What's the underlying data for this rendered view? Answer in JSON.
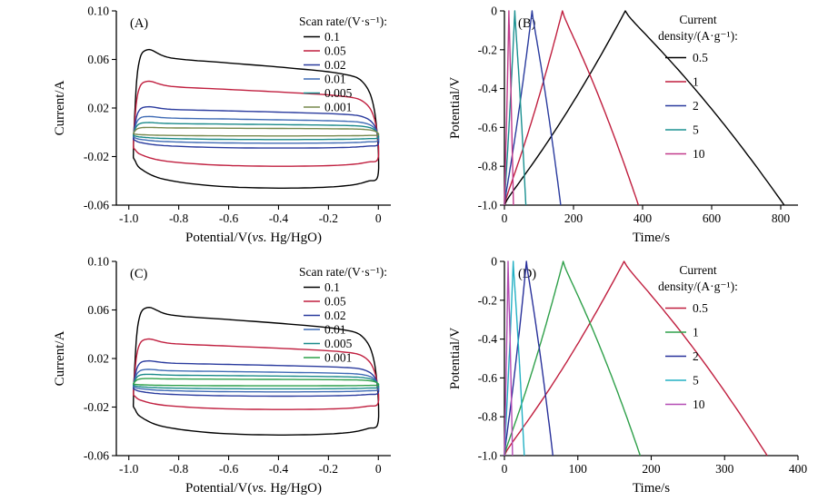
{
  "figure": {
    "background": "#ffffff",
    "description": "Four-panel electrochemistry figure: CV curves (A, C) and galvanostatic charge-discharge curves (B, D)"
  },
  "chart_data": [
    {
      "id": "A",
      "type": "line",
      "subtype": "cv",
      "panel_label": "(A)",
      "xlabel_parts": [
        "Potential/V(",
        "vs.",
        " Hg/HgO)"
      ],
      "ylabel": "Current/A",
      "xlim": [
        -1.05,
        0.05
      ],
      "ylim": [
        -0.06,
        0.1
      ],
      "xticks": [
        -1.0,
        -0.8,
        -0.6,
        -0.4,
        -0.2,
        0
      ],
      "xtick_labels": [
        "-1.0",
        "-0.8",
        "-0.6",
        "-0.4",
        "-0.2",
        "0"
      ],
      "yticks": [
        0.1,
        0.06,
        0.02,
        -0.02,
        -0.06
      ],
      "ytick_labels": [
        "0.10",
        "0.06",
        "0.02",
        "-0.02",
        "-0.06"
      ],
      "margins": {
        "l": 128,
        "r": 20,
        "t": 12,
        "b": 50
      },
      "ylabel_offset": 58,
      "legend": {
        "title_lines": [
          "Scan rate/(V·s⁻¹):"
        ],
        "style": "cv"
      },
      "series": [
        {
          "label": "0.1",
          "color": "#000000",
          "i_top": 0.068,
          "i_bottom": -0.046
        },
        {
          "label": "0.05",
          "color": "#c01f3f",
          "i_top": 0.042,
          "i_bottom": -0.028
        },
        {
          "label": "0.02",
          "color": "#2a3b9e",
          "i_top": 0.021,
          "i_bottom": -0.013
        },
        {
          "label": "0.01",
          "color": "#3f6bb5",
          "i_top": 0.013,
          "i_bottom": -0.009
        },
        {
          "label": "0.005",
          "color": "#1a8a8a",
          "i_top": 0.008,
          "i_bottom": -0.006
        },
        {
          "label": "0.001",
          "color": "#77884c",
          "i_top": 0.004,
          "i_bottom": -0.003
        }
      ]
    },
    {
      "id": "B",
      "type": "line",
      "subtype": "gcd",
      "panel_label": "(B)",
      "xlabel": "Time/s",
      "ylabel": "Potential/V",
      "xlim": [
        0,
        850
      ],
      "ylim": [
        -1.0,
        0
      ],
      "xticks": [
        0,
        200,
        400,
        600,
        800
      ],
      "xtick_labels": [
        "0",
        "200",
        "400",
        "600",
        "800"
      ],
      "yticks": [
        0,
        -0.2,
        -0.4,
        -0.6,
        -0.8,
        -1.0
      ],
      "ytick_labels": [
        "0",
        "-0.2",
        "-0.4",
        "-0.6",
        "-0.8",
        "-1.0"
      ],
      "margins": {
        "l": 105,
        "r": 22,
        "t": 12,
        "b": 50
      },
      "ylabel_offset": 50,
      "legend": {
        "title_lines": [
          "Current",
          "density/(A·g⁻¹):"
        ],
        "style": "gcd"
      },
      "series": [
        {
          "label": "0.5",
          "color": "#000000",
          "t_start": 0,
          "t_peak": 350,
          "t_end": 810
        },
        {
          "label": "1",
          "color": "#c01f3f",
          "t_start": 0,
          "t_peak": 168,
          "t_end": 388
        },
        {
          "label": "2",
          "color": "#2a3b9e",
          "t_start": 0,
          "t_peak": 80,
          "t_end": 163
        },
        {
          "label": "5",
          "color": "#1a9090",
          "t_start": 0,
          "t_peak": 30,
          "t_end": 62
        },
        {
          "label": "10",
          "color": "#c23a8c",
          "t_start": 0,
          "t_peak": 13,
          "t_end": 26
        }
      ]
    },
    {
      "id": "C",
      "type": "line",
      "subtype": "cv",
      "panel_label": "(C)",
      "xlabel_parts": [
        "Potential/V(",
        "vs.",
        " Hg/HgO)"
      ],
      "ylabel": "Current/A",
      "xlim": [
        -1.05,
        0.05
      ],
      "ylim": [
        -0.06,
        0.1
      ],
      "xticks": [
        -1.0,
        -0.8,
        -0.6,
        -0.4,
        -0.2,
        0
      ],
      "xtick_labels": [
        "-1.0",
        "-0.8",
        "-0.6",
        "-0.4",
        "-0.2",
        "0"
      ],
      "yticks": [
        0.1,
        0.06,
        0.02,
        -0.02,
        -0.06
      ],
      "ytick_labels": [
        "0.10",
        "0.06",
        "0.02",
        "-0.02",
        "-0.06"
      ],
      "margins": {
        "l": 128,
        "r": 20,
        "t": 12,
        "b": 50
      },
      "ylabel_offset": 58,
      "legend": {
        "title_lines": [
          "Scan rate/(V·s⁻¹):"
        ],
        "style": "cv"
      },
      "series": [
        {
          "label": "0.1",
          "color": "#000000",
          "i_top": 0.062,
          "i_bottom": -0.043
        },
        {
          "label": "0.05",
          "color": "#c01f3f",
          "i_top": 0.036,
          "i_bottom": -0.022
        },
        {
          "label": "0.02",
          "color": "#2a3b9e",
          "i_top": 0.018,
          "i_bottom": -0.011
        },
        {
          "label": "0.01",
          "color": "#3f6bb5",
          "i_top": 0.011,
          "i_bottom": -0.0075
        },
        {
          "label": "0.005",
          "color": "#1a8a8a",
          "i_top": 0.007,
          "i_bottom": -0.005
        },
        {
          "label": "0.001",
          "color": "#2fa04a",
          "i_top": 0.0035,
          "i_bottom": -0.0025
        }
      ]
    },
    {
      "id": "D",
      "type": "line",
      "subtype": "gcd",
      "panel_label": "(D)",
      "xlabel": "Time/s",
      "ylabel": "Potential/V",
      "xlim": [
        0,
        400
      ],
      "ylim": [
        -1.0,
        0
      ],
      "xticks": [
        0,
        100,
        200,
        300,
        400
      ],
      "xtick_labels": [
        "0",
        "100",
        "200",
        "300",
        "400"
      ],
      "yticks": [
        0,
        -0.2,
        -0.4,
        -0.6,
        -0.8,
        -1.0
      ],
      "ytick_labels": [
        "0",
        "-0.2",
        "-0.4",
        "-0.6",
        "-0.8",
        "-1.0"
      ],
      "margins": {
        "l": 105,
        "r": 22,
        "t": 12,
        "b": 50
      },
      "ylabel_offset": 50,
      "legend": {
        "title_lines": [
          "Current",
          "density/(A·g⁻¹):"
        ],
        "style": "gcd"
      },
      "series": [
        {
          "label": "0.5",
          "color": "#c01f3f",
          "t_start": 0,
          "t_peak": 163,
          "t_end": 358
        },
        {
          "label": "1",
          "color": "#2fa04a",
          "t_start": 0,
          "t_peak": 80,
          "t_end": 185
        },
        {
          "label": "2",
          "color": "#28309a",
          "t_start": 0,
          "t_peak": 30,
          "t_end": 66
        },
        {
          "label": "5",
          "color": "#23b0c4",
          "t_start": 0,
          "t_peak": 12,
          "t_end": 27
        },
        {
          "label": "10",
          "color": "#b44bb4",
          "t_start": 0,
          "t_peak": 5,
          "t_end": 11
        }
      ]
    }
  ]
}
